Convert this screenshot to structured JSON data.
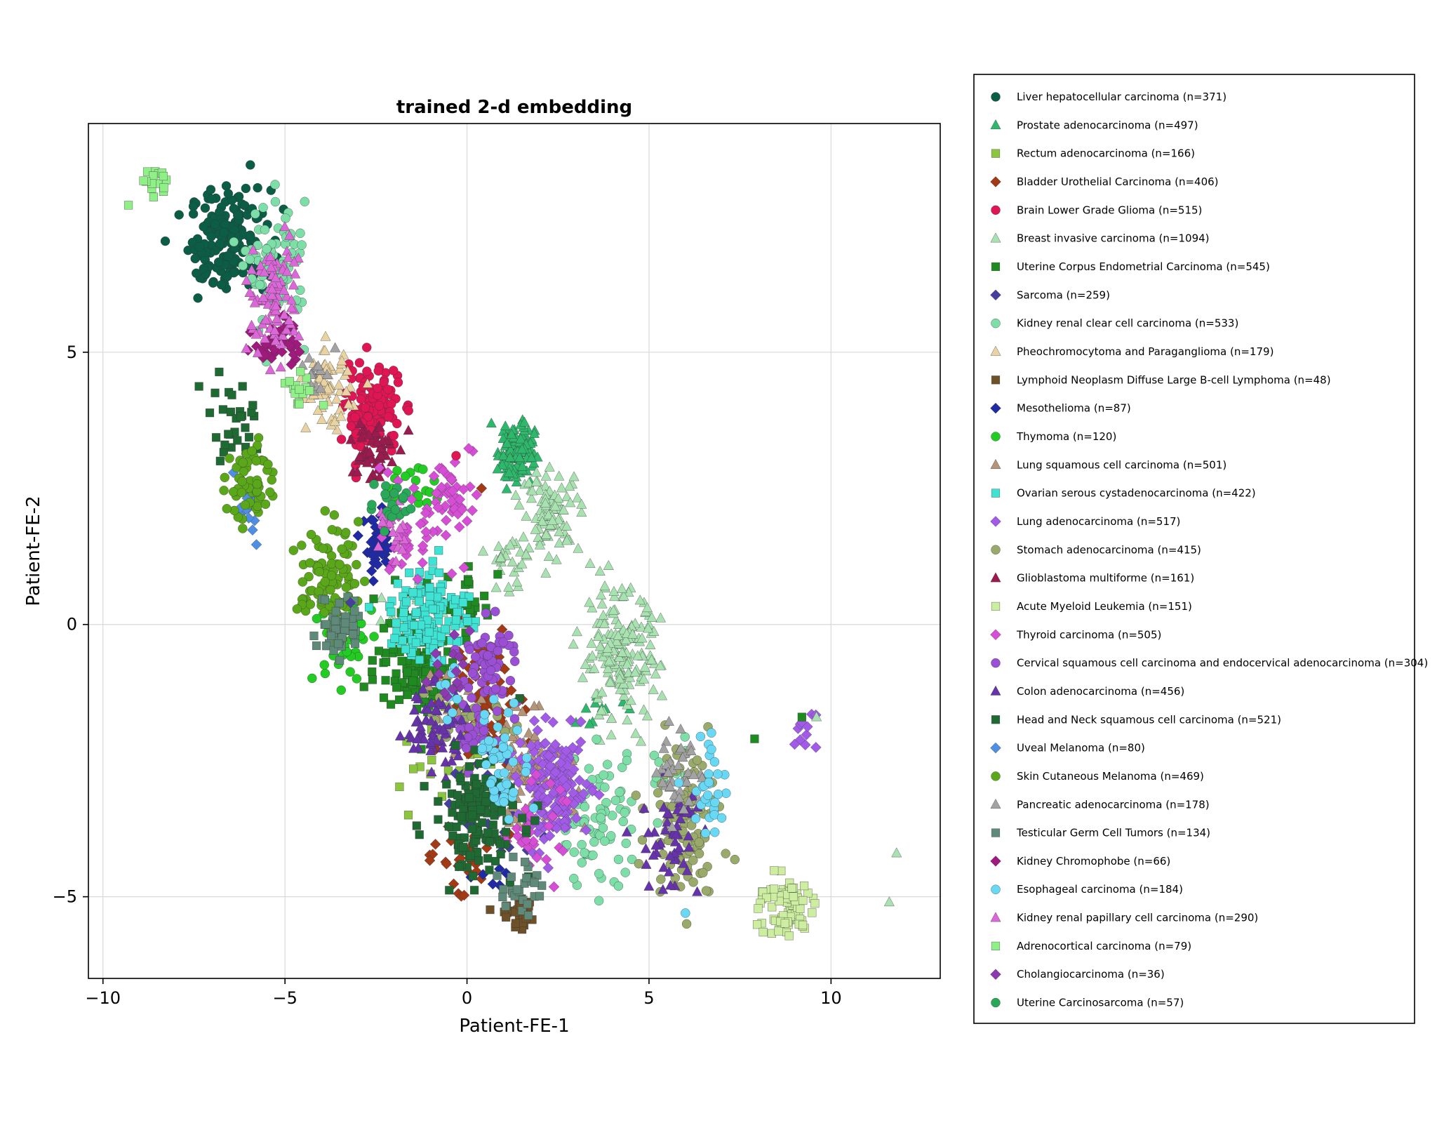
{
  "chart_data": {
    "type": "scatter",
    "title": "trained 2-d embedding",
    "xlabel": "Patient-FE-1",
    "ylabel": "Patient-FE-2",
    "xlim": [
      -10.4,
      13.0
    ],
    "ylim": [
      -6.5,
      9.2
    ],
    "x_ticks": [
      -10,
      -5,
      0,
      5,
      10
    ],
    "x_tick_labels": [
      "−10",
      "−5",
      "0",
      "5",
      "10"
    ],
    "y_ticks": [
      -5,
      0,
      5
    ],
    "y_tick_labels": [
      "−5",
      "0",
      "5"
    ],
    "grid": true,
    "legend_placement": "right-outside",
    "series": [
      {
        "name": "Liver hepatocellular carcinoma (n=371)",
        "color": "#0b5d45",
        "marker": "circle",
        "clusters": [
          {
            "cx": -6.5,
            "cy": 7.1,
            "sx": 0.55,
            "sy": 0.45,
            "n": 150
          },
          {
            "cx": -7.1,
            "cy": 6.6,
            "sx": 0.3,
            "sy": 0.3,
            "n": 20
          }
        ]
      },
      {
        "name": "Prostate adenocarcinoma (n=497)",
        "color": "#2db86b",
        "marker": "triangle",
        "clusters": [
          {
            "cx": 1.35,
            "cy": 3.2,
            "sx": 0.25,
            "sy": 0.3,
            "n": 110
          },
          {
            "cx": 3.5,
            "cy": -1.6,
            "sx": 0.4,
            "sy": 0.15,
            "n": 10
          }
        ]
      },
      {
        "name": "Rectum adenocarcinoma (n=166)",
        "color": "#8cc63f",
        "marker": "square",
        "clusters": [
          {
            "cx": -0.5,
            "cy": -2.5,
            "sx": 0.8,
            "sy": 0.5,
            "n": 20
          }
        ]
      },
      {
        "name": "Bladder Urothelial Carcinoma (n=406)",
        "color": "#a23a16",
        "marker": "diamond",
        "clusters": [
          {
            "cx": 0.4,
            "cy": -1.5,
            "sx": 0.5,
            "sy": 0.6,
            "n": 80
          },
          {
            "cx": -0.2,
            "cy": -4.2,
            "sx": 0.6,
            "sy": 0.3,
            "n": 30
          }
        ]
      },
      {
        "name": "Brain Lower Grade Glioma (n=515)",
        "color": "#df1554",
        "marker": "circle",
        "clusters": [
          {
            "cx": -2.6,
            "cy": 3.9,
            "sx": 0.38,
            "sy": 0.4,
            "n": 140
          }
        ]
      },
      {
        "name": "Breast invasive carcinoma (n=1094)",
        "color": "#a8e2b0",
        "marker": "triangle",
        "clusters": [
          {
            "cx": 4.2,
            "cy": -0.6,
            "sx": 0.55,
            "sy": 0.6,
            "n": 170
          },
          {
            "cx": 2.3,
            "cy": 2.1,
            "sx": 0.4,
            "sy": 0.35,
            "n": 90
          },
          {
            "cx": 1.2,
            "cy": 1.0,
            "sx": 0.4,
            "sy": 0.4,
            "n": 25
          },
          {
            "cx": -1.5,
            "cy": 0.2,
            "sx": 0.5,
            "sy": 0.3,
            "n": 20
          }
        ]
      },
      {
        "name": "Uterine Corpus Endometrial Carcinoma (n=545)",
        "color": "#1f8a1f",
        "marker": "square",
        "clusters": [
          {
            "cx": -1.3,
            "cy": -0.6,
            "sx": 0.6,
            "sy": 0.5,
            "n": 120
          },
          {
            "cx": 0.1,
            "cy": 0.4,
            "sx": 0.3,
            "sy": 0.3,
            "n": 30
          }
        ]
      },
      {
        "name": "Sarcoma (n=259)",
        "color": "#473f9e",
        "marker": "diamond",
        "clusters": [
          {
            "cx": 0.6,
            "cy": -3.3,
            "sx": 0.7,
            "sy": 0.6,
            "n": 30
          }
        ]
      },
      {
        "name": "Kidney renal clear cell carcinoma (n=533)",
        "color": "#7ddfa7",
        "marker": "circle",
        "clusters": [
          {
            "cx": -5.2,
            "cy": 6.5,
            "sx": 0.4,
            "sy": 0.6,
            "n": 80
          },
          {
            "cx": 3.6,
            "cy": -3.6,
            "sx": 0.6,
            "sy": 0.6,
            "n": 80
          },
          {
            "cx": 5.5,
            "cy": -2.6,
            "sx": 0.3,
            "sy": 0.3,
            "n": 10
          }
        ]
      },
      {
        "name": "Pheochromocytoma and Paraganglioma (n=179)",
        "color": "#ead3a3",
        "marker": "triangle",
        "clusters": [
          {
            "cx": -3.8,
            "cy": 4.3,
            "sx": 0.3,
            "sy": 0.35,
            "n": 60
          }
        ]
      },
      {
        "name": "Lymphoid Neoplasm Diffuse Large B-cell Lymphoma (n=48)",
        "color": "#6e5128",
        "marker": "square",
        "clusters": [
          {
            "cx": 1.4,
            "cy": -5.3,
            "sx": 0.3,
            "sy": 0.15,
            "n": 30
          }
        ]
      },
      {
        "name": "Mesothelioma (n=87)",
        "color": "#1f2aa4",
        "marker": "diamond",
        "clusters": [
          {
            "cx": -2.4,
            "cy": 1.4,
            "sx": 0.2,
            "sy": 0.3,
            "n": 50
          },
          {
            "cx": 0.8,
            "cy": -4.7,
            "sx": 0.3,
            "sy": 0.2,
            "n": 6
          }
        ]
      },
      {
        "name": "Thymoma (n=120)",
        "color": "#22cc22",
        "marker": "circle",
        "clusters": [
          {
            "cx": -3.4,
            "cy": -0.3,
            "sx": 0.4,
            "sy": 0.4,
            "n": 50
          },
          {
            "cx": -1.6,
            "cy": 2.4,
            "sx": 0.4,
            "sy": 0.3,
            "n": 20
          }
        ]
      },
      {
        "name": "Lung squamous cell carcinoma (n=501)",
        "color": "#b4957a",
        "marker": "triangle",
        "clusters": [
          {
            "cx": 1.8,
            "cy": -2.7,
            "sx": 0.6,
            "sy": 0.5,
            "n": 80
          },
          {
            "cx": -0.4,
            "cy": -1.5,
            "sx": 0.4,
            "sy": 0.4,
            "n": 20
          }
        ]
      },
      {
        "name": "Ovarian serous cystadenocarcinoma (n=422)",
        "color": "#3ee3d4",
        "marker": "square",
        "clusters": [
          {
            "cx": -1.0,
            "cy": 0.2,
            "sx": 0.55,
            "sy": 0.45,
            "n": 130
          }
        ]
      },
      {
        "name": "Lung adenocarcinoma (n=517)",
        "color": "#a25be7",
        "marker": "diamond",
        "clusters": [
          {
            "cx": 2.4,
            "cy": -3.0,
            "sx": 0.5,
            "sy": 0.5,
            "n": 160
          },
          {
            "cx": 9.2,
            "cy": -2.0,
            "sx": 0.2,
            "sy": 0.2,
            "n": 10
          }
        ]
      },
      {
        "name": "Stomach adenocarcinoma (n=415)",
        "color": "#9aaa6a",
        "marker": "circle",
        "clusters": [
          {
            "cx": 6.0,
            "cy": -3.5,
            "sx": 0.5,
            "sy": 0.7,
            "n": 100
          },
          {
            "cx": -0.2,
            "cy": -1.8,
            "sx": 0.6,
            "sy": 0.6,
            "n": 30
          }
        ]
      },
      {
        "name": "Glioblastoma multiforme (n=161)",
        "color": "#9c1b4f",
        "marker": "triangle",
        "clusters": [
          {
            "cx": -2.6,
            "cy": 3.2,
            "sx": 0.3,
            "sy": 0.3,
            "n": 50
          }
        ]
      },
      {
        "name": "Acute Myeloid Leukemia (n=151)",
        "color": "#cdeea0",
        "marker": "square",
        "clusters": [
          {
            "cx": 8.7,
            "cy": -5.2,
            "sx": 0.4,
            "sy": 0.3,
            "n": 80
          }
        ]
      },
      {
        "name": "Thyroid carcinoma (n=505)",
        "color": "#d74ed6",
        "marker": "diamond",
        "clusters": [
          {
            "cx": -0.3,
            "cy": 2.3,
            "sx": 0.35,
            "sy": 0.5,
            "n": 50
          },
          {
            "cx": -1.7,
            "cy": 1.6,
            "sx": 0.3,
            "sy": 0.4,
            "n": 40
          },
          {
            "cx": 1.8,
            "cy": -3.7,
            "sx": 0.4,
            "sy": 0.4,
            "n": 30
          }
        ]
      },
      {
        "name": "Cervical squamous cell carcinoma and endocervical adenocarcinoma (n=304)",
        "color": "#9a4fd4",
        "marker": "circle",
        "clusters": [
          {
            "cx": 0.6,
            "cy": -0.7,
            "sx": 0.4,
            "sy": 0.4,
            "n": 60
          },
          {
            "cx": 0.2,
            "cy": -2.0,
            "sx": 0.4,
            "sy": 0.3,
            "n": 30
          }
        ]
      },
      {
        "name": "Colon adenocarcinoma (n=456)",
        "color": "#6633aa",
        "marker": "triangle",
        "clusters": [
          {
            "cx": -1.0,
            "cy": -1.9,
            "sx": 0.5,
            "sy": 0.4,
            "n": 60
          },
          {
            "cx": 5.6,
            "cy": -4.0,
            "sx": 0.4,
            "sy": 0.5,
            "n": 50
          }
        ]
      },
      {
        "name": "Head and Neck squamous cell carcinoma (n=521)",
        "color": "#1e6a32",
        "marker": "square",
        "clusters": [
          {
            "cx": 0.3,
            "cy": -3.5,
            "sx": 0.6,
            "sy": 0.5,
            "n": 140
          },
          {
            "cx": -6.4,
            "cy": 3.7,
            "sx": 0.4,
            "sy": 0.5,
            "n": 30
          }
        ]
      },
      {
        "name": "Uveal Melanoma (n=80)",
        "color": "#4f8fe3",
        "marker": "diamond",
        "clusters": [
          {
            "cx": -6.0,
            "cy": 2.1,
            "sx": 0.2,
            "sy": 0.3,
            "n": 20
          }
        ]
      },
      {
        "name": "Skin Cutaneous Melanoma (n=469)",
        "color": "#5aa81a",
        "marker": "circle",
        "clusters": [
          {
            "cx": -3.8,
            "cy": 0.8,
            "sx": 0.4,
            "sy": 0.5,
            "n": 100
          },
          {
            "cx": -6.0,
            "cy": 2.6,
            "sx": 0.3,
            "sy": 0.4,
            "n": 60
          }
        ]
      },
      {
        "name": "Pancreatic adenocarcinoma (n=178)",
        "color": "#a3a3a3",
        "marker": "triangle",
        "clusters": [
          {
            "cx": 5.9,
            "cy": -2.7,
            "sx": 0.3,
            "sy": 0.4,
            "n": 40
          },
          {
            "cx": -4.2,
            "cy": 4.6,
            "sx": 0.3,
            "sy": 0.2,
            "n": 15
          }
        ]
      },
      {
        "name": "Testicular Germ Cell Tumors (n=134)",
        "color": "#5f8a7a",
        "marker": "square",
        "clusters": [
          {
            "cx": -3.5,
            "cy": 0.0,
            "sx": 0.3,
            "sy": 0.3,
            "n": 40
          },
          {
            "cx": 1.5,
            "cy": -4.8,
            "sx": 0.3,
            "sy": 0.3,
            "n": 25
          }
        ]
      },
      {
        "name": "Kidney Chromophobe (n=66)",
        "color": "#a01a7d",
        "marker": "diamond",
        "clusters": [
          {
            "cx": -5.2,
            "cy": 5.2,
            "sx": 0.3,
            "sy": 0.25,
            "n": 40
          }
        ]
      },
      {
        "name": "Esophageal carcinoma (n=184)",
        "color": "#68d8f4",
        "marker": "circle",
        "clusters": [
          {
            "cx": 1.0,
            "cy": -2.5,
            "sx": 0.35,
            "sy": 0.5,
            "n": 50
          },
          {
            "cx": 6.7,
            "cy": -3.0,
            "sx": 0.3,
            "sy": 0.5,
            "n": 30
          },
          {
            "cx": -0.4,
            "cy": -1.2,
            "sx": 0.3,
            "sy": 0.3,
            "n": 10
          }
        ]
      },
      {
        "name": "Kidney renal papillary cell carcinoma (n=290)",
        "color": "#dc67d8",
        "marker": "triangle",
        "clusters": [
          {
            "cx": -5.3,
            "cy": 6.0,
            "sx": 0.35,
            "sy": 0.55,
            "n": 90
          },
          {
            "cx": -2.0,
            "cy": 1.7,
            "sx": 0.2,
            "sy": 0.3,
            "n": 20
          }
        ]
      },
      {
        "name": "Adrenocortical carcinoma (n=79)",
        "color": "#8ff088",
        "marker": "square",
        "clusters": [
          {
            "cx": -8.5,
            "cy": 8.1,
            "sx": 0.25,
            "sy": 0.12,
            "n": 15
          },
          {
            "cx": -4.7,
            "cy": 4.3,
            "sx": 0.25,
            "sy": 0.2,
            "n": 15
          }
        ]
      },
      {
        "name": "Cholangiocarcinoma (n=36)",
        "color": "#8b3ab0",
        "marker": "diamond",
        "clusters": [
          {
            "cx": -0.5,
            "cy": -1.0,
            "sx": 0.4,
            "sy": 0.4,
            "n": 15
          }
        ]
      },
      {
        "name": "Uterine Carcinosarcoma (n=57)",
        "color": "#28a858",
        "marker": "circle",
        "clusters": [
          {
            "cx": -2.0,
            "cy": 2.3,
            "sx": 0.3,
            "sy": 0.3,
            "n": 20
          }
        ]
      }
    ],
    "outliers": [
      {
        "series": 5,
        "x": 11.8,
        "y": -4.2
      },
      {
        "series": 5,
        "x": 11.6,
        "y": -5.1
      },
      {
        "series": 5,
        "x": 9.6,
        "y": -1.7
      },
      {
        "series": 30,
        "x": -9.3,
        "y": 7.7
      },
      {
        "series": 28,
        "x": 6.0,
        "y": -5.3
      },
      {
        "series": 6,
        "x": 9.2,
        "y": -1.7
      },
      {
        "series": 6,
        "x": 7.9,
        "y": -2.1
      },
      {
        "series": 15,
        "x": 9.0,
        "y": -2.2
      },
      {
        "series": 4,
        "x": -0.3,
        "y": 3.1
      },
      {
        "series": 3,
        "x": 0.4,
        "y": 2.5
      },
      {
        "series": 7,
        "x": -3.2,
        "y": 0.4
      }
    ]
  }
}
